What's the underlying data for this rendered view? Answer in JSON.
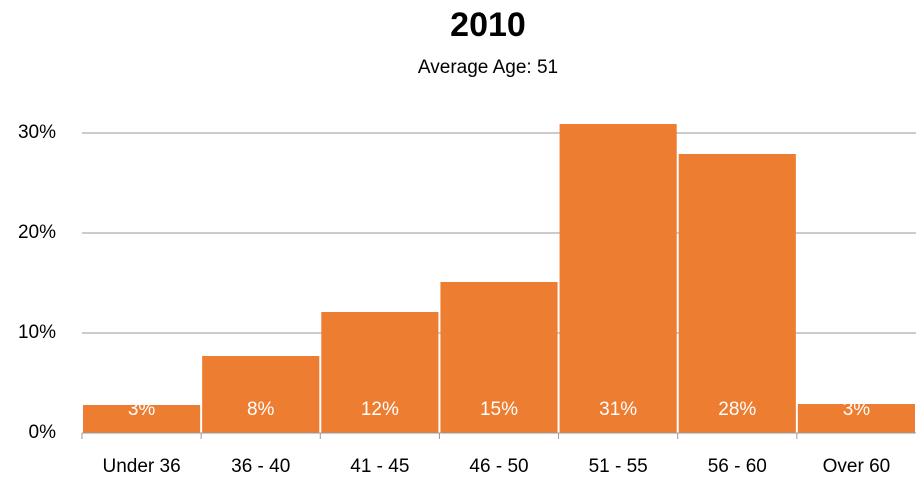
{
  "chart_data": {
    "type": "bar",
    "title": "2010",
    "subtitle": "Average Age: 51",
    "categories": [
      "Under 36",
      "36 - 40",
      "41 - 45",
      "46 - 50",
      "51 - 55",
      "56 - 60",
      "Over 60"
    ],
    "values": [
      2.8,
      7.7,
      12.1,
      15.1,
      30.9,
      27.9,
      2.9
    ],
    "value_labels": [
      "3%",
      "8%",
      "12%",
      "15%",
      "31%",
      "28%",
      "3%"
    ],
    "color": "#ed7d31",
    "ylim": [
      0,
      35
    ],
    "yticks": [
      {
        "value": 0,
        "label": "0%"
      },
      {
        "value": 10,
        "label": "10%"
      },
      {
        "value": 20,
        "label": "20%"
      },
      {
        "value": 30,
        "label": "30%"
      }
    ],
    "grid": true
  }
}
